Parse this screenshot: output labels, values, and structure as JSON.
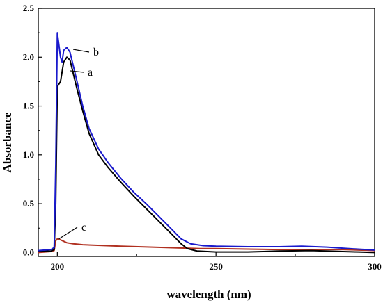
{
  "chart_data": {
    "type": "line",
    "xlabel": "wavelength (nm)",
    "ylabel": "Absorbance",
    "xlim": [
      194,
      300
    ],
    "ylim": [
      -0.04,
      2.5
    ],
    "x_ticks": [
      "200",
      "250",
      "300"
    ],
    "y_ticks": [
      "0.0",
      "0.5",
      "1.0",
      "1.5",
      "2.0",
      "2.5"
    ],
    "grid": false,
    "series": [
      {
        "name": "a",
        "color": "#000000",
        "points": [
          [
            194,
            0.01
          ],
          [
            198,
            0.015
          ],
          [
            199,
            0.03
          ],
          [
            199.5,
            0.5
          ],
          [
            200,
            1.7
          ],
          [
            201,
            1.75
          ],
          [
            202,
            1.95
          ],
          [
            203,
            2.0
          ],
          [
            204,
            1.97
          ],
          [
            206,
            1.7
          ],
          [
            208,
            1.45
          ],
          [
            210,
            1.22
          ],
          [
            213,
            1.0
          ],
          [
            216,
            0.87
          ],
          [
            220,
            0.72
          ],
          [
            224,
            0.58
          ],
          [
            228,
            0.45
          ],
          [
            232,
            0.32
          ],
          [
            236,
            0.19
          ],
          [
            239,
            0.09
          ],
          [
            241,
            0.04
          ],
          [
            244,
            0.015
          ],
          [
            250,
            0.005
          ],
          [
            260,
            0.005
          ],
          [
            270,
            0.015
          ],
          [
            280,
            0.02
          ],
          [
            290,
            0.01
          ],
          [
            295,
            0.005
          ],
          [
            300,
            0.0
          ]
        ]
      },
      {
        "name": "b",
        "color": "#1a1acc",
        "points": [
          [
            194,
            0.02
          ],
          [
            198,
            0.03
          ],
          [
            199,
            0.05
          ],
          [
            199.5,
            0.9
          ],
          [
            200,
            2.25
          ],
          [
            201,
            2.0
          ],
          [
            201.5,
            1.95
          ],
          [
            202,
            2.07
          ],
          [
            203,
            2.1
          ],
          [
            204,
            2.05
          ],
          [
            206,
            1.78
          ],
          [
            208,
            1.5
          ],
          [
            210,
            1.27
          ],
          [
            213,
            1.06
          ],
          [
            216,
            0.92
          ],
          [
            220,
            0.76
          ],
          [
            224,
            0.62
          ],
          [
            228,
            0.5
          ],
          [
            232,
            0.37
          ],
          [
            236,
            0.24
          ],
          [
            239,
            0.14
          ],
          [
            242,
            0.09
          ],
          [
            246,
            0.07
          ],
          [
            250,
            0.065
          ],
          [
            260,
            0.06
          ],
          [
            270,
            0.06
          ],
          [
            277,
            0.065
          ],
          [
            285,
            0.055
          ],
          [
            292,
            0.04
          ],
          [
            300,
            0.025
          ]
        ]
      },
      {
        "name": "c",
        "color": "#b03020",
        "points": [
          [
            194,
            0.0
          ],
          [
            198,
            0.01
          ],
          [
            199,
            0.02
          ],
          [
            199.5,
            0.12
          ],
          [
            200,
            0.14
          ],
          [
            201,
            0.13
          ],
          [
            203,
            0.1
          ],
          [
            205,
            0.09
          ],
          [
            208,
            0.08
          ],
          [
            212,
            0.075
          ],
          [
            220,
            0.065
          ],
          [
            230,
            0.055
          ],
          [
            240,
            0.045
          ],
          [
            245,
            0.04
          ],
          [
            250,
            0.04
          ],
          [
            260,
            0.035
          ],
          [
            270,
            0.03
          ],
          [
            280,
            0.03
          ],
          [
            290,
            0.03
          ],
          [
            300,
            0.02
          ]
        ]
      }
    ]
  }
}
